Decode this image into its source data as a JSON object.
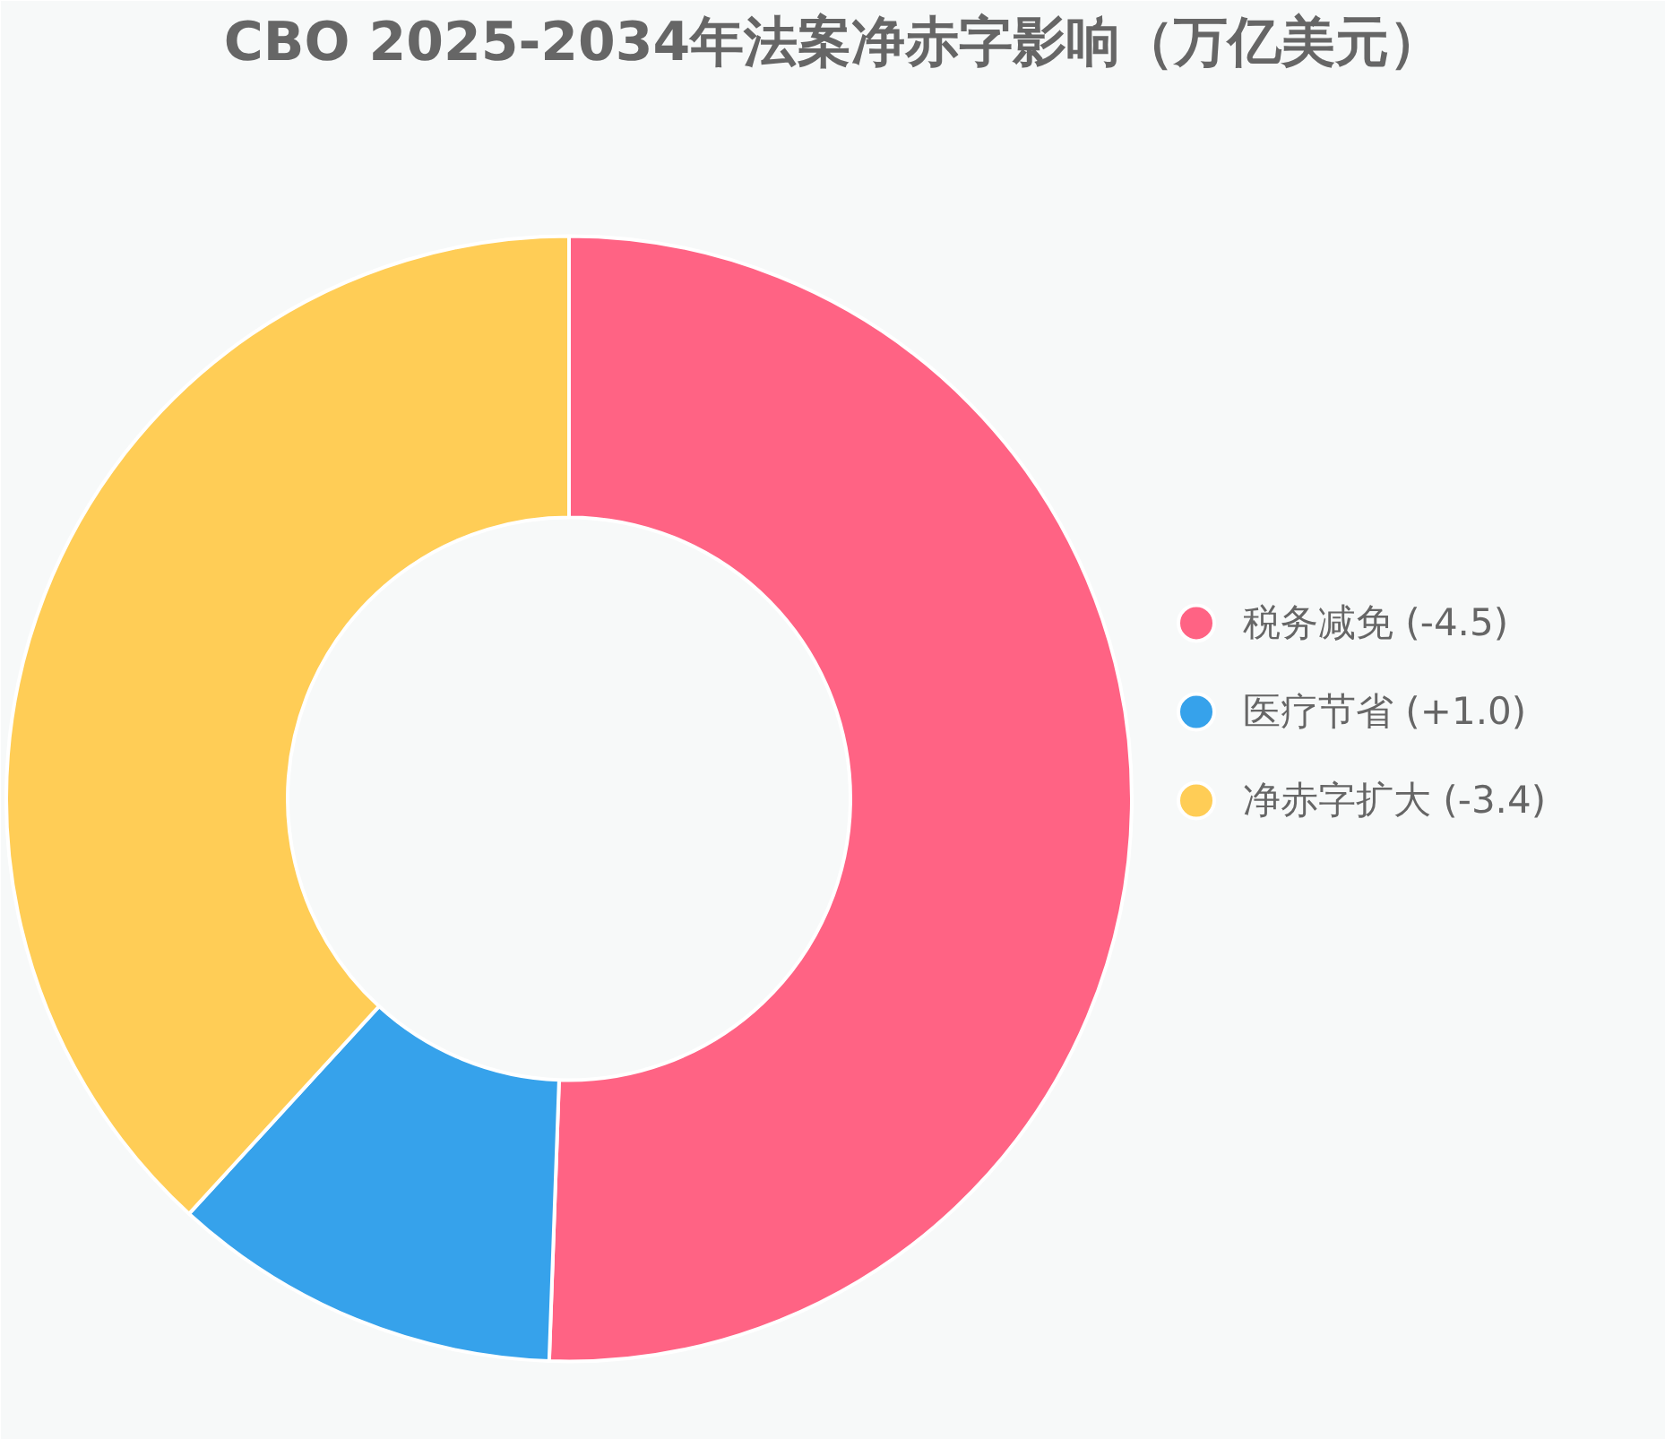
{
  "chart_data": {
    "type": "donut",
    "title": "CBO 2025-2034年法案净赤字影响（万亿美元）",
    "categories": [
      "税务减免 (-4.5)",
      "医疗节省 (+1.0)",
      "净赤字扩大 (-3.4)"
    ],
    "values": [
      4.5,
      1.0,
      3.4
    ],
    "colors": [
      "#ff6384",
      "#36a2eb",
      "#ffcd56"
    ],
    "legend": "right"
  }
}
